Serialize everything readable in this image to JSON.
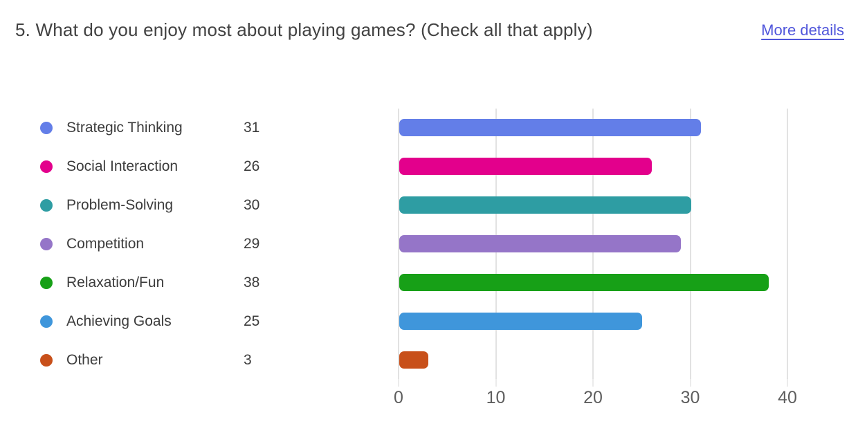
{
  "header": {
    "title": "5. What do you enjoy most about playing games? (Check all that apply)",
    "more_details_label": "More details"
  },
  "colors": {
    "title_text": "#424242",
    "link": "#4F55DB",
    "legend_text": "#3C3C3C",
    "axis_text": "#5E5E5E",
    "gridline": "#E2E2E2",
    "background": "#FFFFFF"
  },
  "chart_data": {
    "type": "bar",
    "orientation": "horizontal",
    "title": "5. What do you enjoy most about playing games? (Check all that apply)",
    "categories": [
      "Strategic Thinking",
      "Social Interaction",
      "Problem-Solving",
      "Competition",
      "Relaxation/Fun",
      "Achieving Goals",
      "Other"
    ],
    "values": [
      31,
      26,
      30,
      29,
      38,
      25,
      3
    ],
    "bar_colors": [
      "#637EE8",
      "#E3008C",
      "#2E9DA3",
      "#9575C8",
      "#17A017",
      "#3F96DB",
      "#C8501A"
    ],
    "xlabel": "",
    "ylabel": "",
    "xlim": [
      0,
      45
    ],
    "xticks": [
      0,
      10,
      20,
      30,
      40
    ],
    "grid": true,
    "legend_position": "left",
    "value_labels_shown_in_legend": true
  }
}
